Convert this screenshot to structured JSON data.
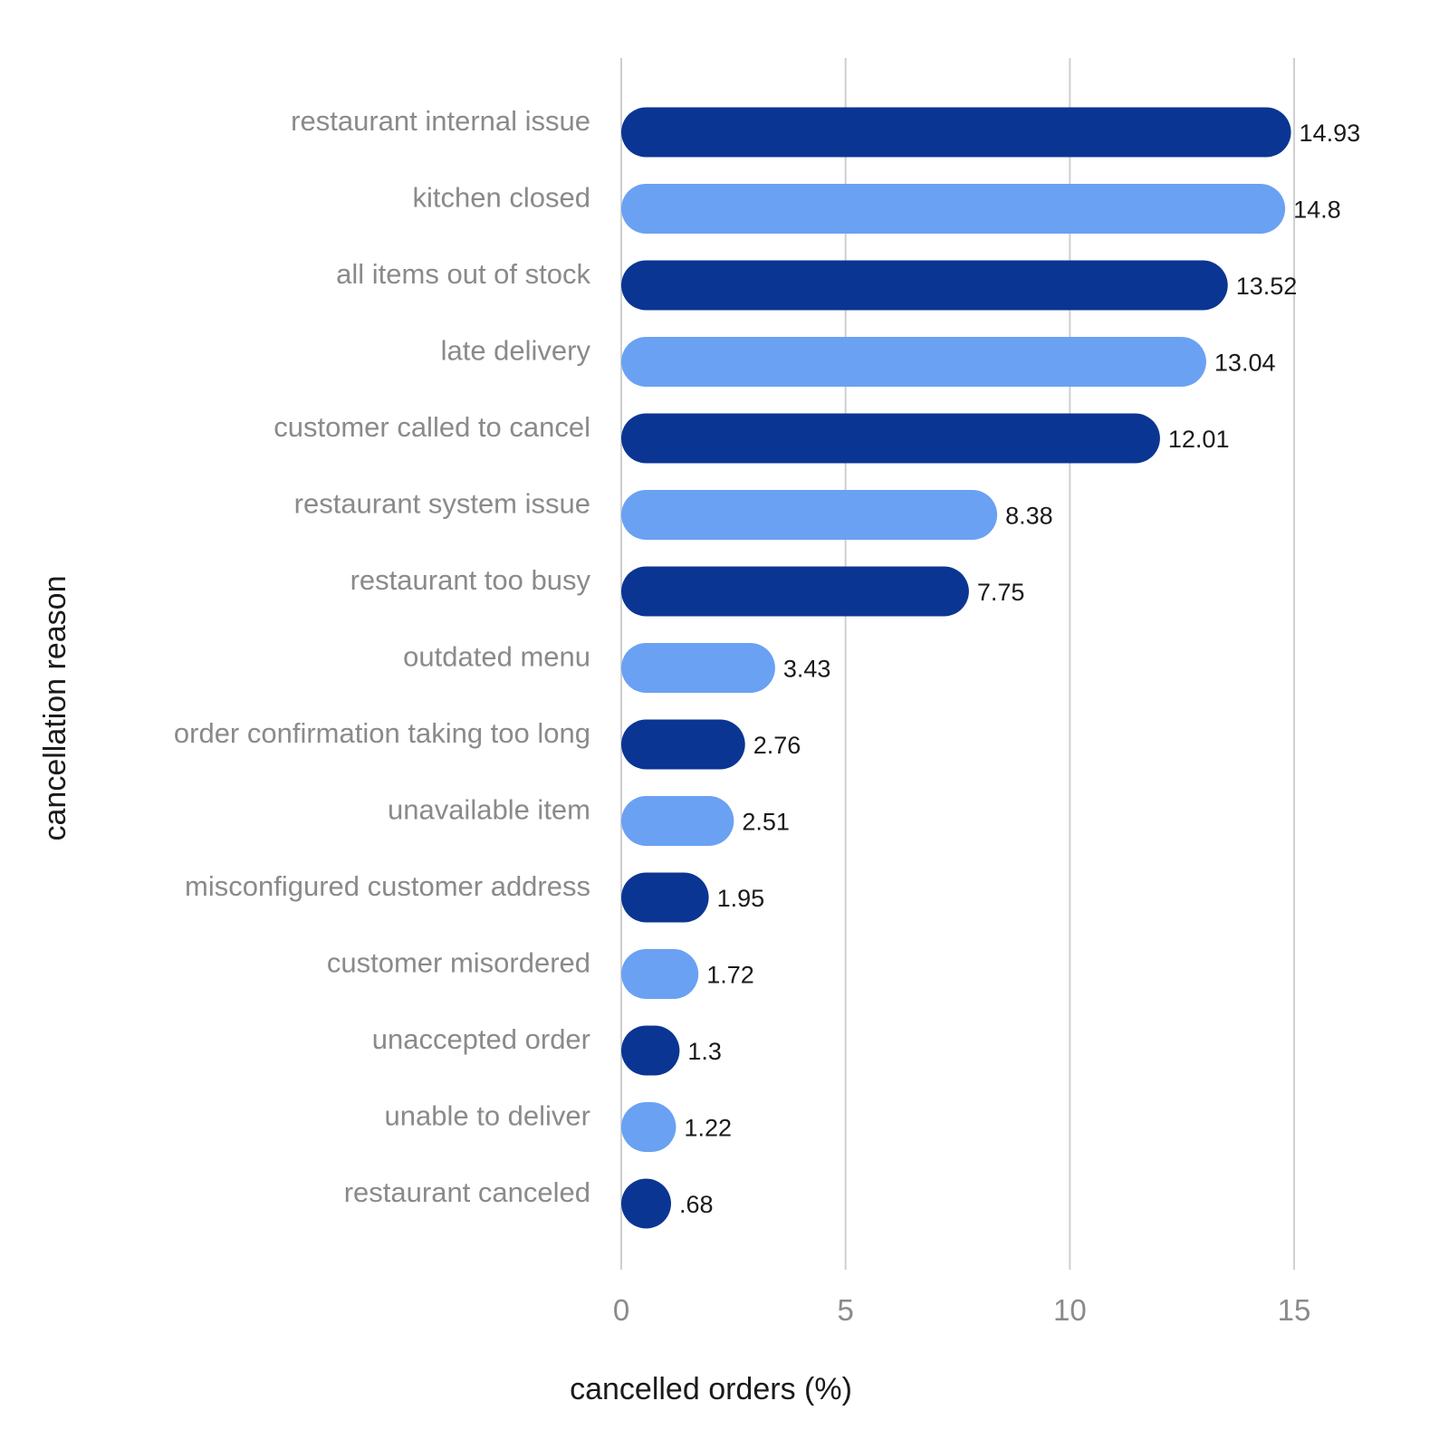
{
  "chart_data": {
    "type": "bar",
    "orientation": "horizontal",
    "title": "",
    "xlabel": "cancelled orders (%)",
    "ylabel": "cancellation reason",
    "xlim": [
      0,
      15
    ],
    "xticks": [
      0,
      5,
      10,
      15
    ],
    "grid": "vertical",
    "legend": "none",
    "colors": {
      "dark": "#0b3593",
      "light": "#6aa1f2"
    },
    "categories": [
      "restaurant internal issue",
      "kitchen closed",
      "all items out of stock",
      "late delivery",
      "customer called to cancel",
      "restaurant system issue",
      "restaurant too busy",
      "outdated menu",
      "order confirmation taking too long",
      "unavailable item",
      "misconfigured customer address",
      "customer misordered",
      "unaccepted order",
      "unable to deliver",
      "restaurant canceled"
    ],
    "values": [
      14.93,
      14.8,
      13.52,
      13.04,
      12.01,
      8.38,
      7.75,
      3.43,
      2.76,
      2.51,
      1.95,
      1.72,
      1.3,
      1.22,
      0.68
    ],
    "value_labels": [
      "14.93",
      "14.8",
      "13.52",
      "13.04",
      "12.01",
      "8.38",
      "7.75",
      "3.43",
      "2.76",
      "2.51",
      "1.95",
      "1.72",
      "1.3",
      "1.22",
      ".68"
    ]
  }
}
